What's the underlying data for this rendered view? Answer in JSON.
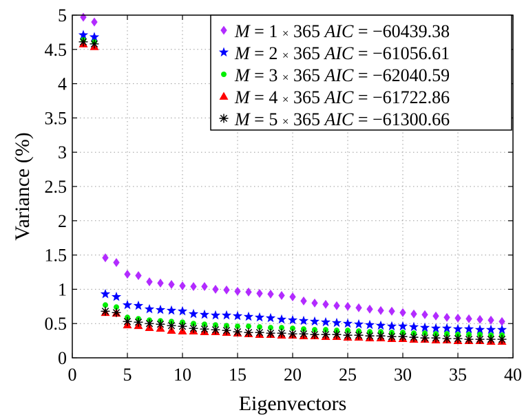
{
  "chart_data": {
    "type": "scatter",
    "xlabel": "Eigenvectors",
    "ylabel": "Variance (%)",
    "xlim": [
      0,
      40
    ],
    "ylim": [
      0,
      5
    ],
    "xticks": [
      0,
      5,
      10,
      15,
      20,
      25,
      30,
      35,
      40
    ],
    "yticks": [
      0,
      0.5,
      1,
      1.5,
      2,
      2.5,
      3,
      3.5,
      4,
      4.5,
      5
    ],
    "xtick_labels": [
      "0",
      "5",
      "10",
      "15",
      "20",
      "25",
      "30",
      "35",
      "40"
    ],
    "ytick_labels": [
      "0",
      "0.5",
      "1",
      "1.5",
      "2",
      "2.5",
      "3",
      "3.5",
      "4",
      "4.5",
      "5"
    ],
    "grid": true,
    "legend_position": "top-right",
    "x": [
      1,
      2,
      3,
      4,
      5,
      6,
      7,
      8,
      9,
      10,
      11,
      12,
      13,
      14,
      15,
      16,
      17,
      18,
      19,
      20,
      21,
      22,
      23,
      24,
      25,
      26,
      27,
      28,
      29,
      30,
      31,
      32,
      33,
      34,
      35,
      36,
      37,
      38,
      39
    ],
    "series": [
      {
        "marker": "diamond",
        "color": "#b22bff",
        "legend": {
          "var": "M",
          "eq": "= 1",
          "times": "×",
          "n": "365",
          "aic_label": "AIC",
          "aic_eq": "= −60439.38"
        },
        "values": [
          4.97,
          4.9,
          1.46,
          1.39,
          1.22,
          1.2,
          1.11,
          1.09,
          1.07,
          1.05,
          1.04,
          1.04,
          1.0,
          0.99,
          0.97,
          0.96,
          0.94,
          0.93,
          0.91,
          0.89,
          0.83,
          0.8,
          0.78,
          0.76,
          0.75,
          0.73,
          0.71,
          0.69,
          0.68,
          0.66,
          0.64,
          0.63,
          0.61,
          0.59,
          0.58,
          0.57,
          0.56,
          0.55,
          0.53
        ]
      },
      {
        "marker": "star",
        "color": "#0000ff",
        "legend": {
          "var": "M",
          "eq": "= 2",
          "times": "×",
          "n": "365",
          "aic_label": "AIC",
          "aic_eq": "= −61056.61"
        },
        "values": [
          4.71,
          4.68,
          0.93,
          0.89,
          0.77,
          0.76,
          0.71,
          0.7,
          0.69,
          0.68,
          0.64,
          0.63,
          0.62,
          0.62,
          0.61,
          0.6,
          0.59,
          0.58,
          0.56,
          0.55,
          0.54,
          0.53,
          0.52,
          0.51,
          0.5,
          0.49,
          0.48,
          0.47,
          0.46,
          0.46,
          0.45,
          0.44,
          0.43,
          0.43,
          0.42,
          0.42,
          0.41,
          0.41,
          0.41
        ]
      },
      {
        "marker": "circle",
        "color": "#00ee00",
        "legend": {
          "var": "M",
          "eq": "= 3",
          "times": "×",
          "n": "365",
          "aic_label": "AIC",
          "aic_eq": "= −62040.59"
        },
        "values": [
          4.64,
          4.61,
          0.77,
          0.74,
          0.59,
          0.57,
          0.55,
          0.54,
          0.53,
          0.52,
          0.5,
          0.49,
          0.48,
          0.47,
          0.46,
          0.46,
          0.45,
          0.44,
          0.44,
          0.43,
          0.42,
          0.41,
          0.41,
          0.4,
          0.4,
          0.39,
          0.38,
          0.38,
          0.37,
          0.37,
          0.36,
          0.36,
          0.35,
          0.35,
          0.34,
          0.34,
          0.34,
          0.33,
          0.33
        ]
      },
      {
        "marker": "triangle",
        "color": "#ff0000",
        "legend": {
          "var": "M",
          "eq": "= 4",
          "times": "×",
          "n": "365",
          "aic_label": "AIC",
          "aic_eq": "= −61722.86"
        },
        "values": [
          4.58,
          4.54,
          0.66,
          0.65,
          0.48,
          0.47,
          0.44,
          0.43,
          0.4,
          0.39,
          0.39,
          0.38,
          0.38,
          0.37,
          0.36,
          0.35,
          0.34,
          0.34,
          0.33,
          0.33,
          0.32,
          0.32,
          0.31,
          0.31,
          0.3,
          0.3,
          0.29,
          0.29,
          0.28,
          0.28,
          0.27,
          0.27,
          0.26,
          0.26,
          0.25,
          0.25,
          0.25,
          0.24,
          0.24
        ]
      },
      {
        "marker": "asterisk",
        "color": "#000000",
        "legend": {
          "var": "M",
          "eq": "= 5",
          "times": "×",
          "n": "365",
          "aic_label": "AIC",
          "aic_eq": "= −61300.66"
        },
        "values": [
          4.61,
          4.58,
          0.68,
          0.66,
          0.53,
          0.52,
          0.5,
          0.49,
          0.47,
          0.46,
          0.43,
          0.42,
          0.41,
          0.4,
          0.38,
          0.37,
          0.37,
          0.36,
          0.36,
          0.35,
          0.35,
          0.34,
          0.34,
          0.34,
          0.33,
          0.33,
          0.32,
          0.32,
          0.31,
          0.31,
          0.3,
          0.29,
          0.29,
          0.28,
          0.28,
          0.27,
          0.27,
          0.27,
          0.27
        ]
      }
    ]
  }
}
